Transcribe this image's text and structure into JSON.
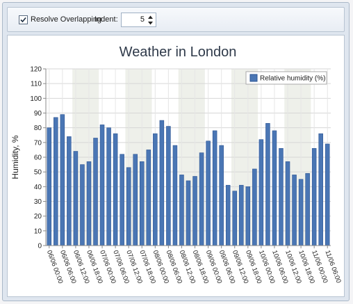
{
  "toolbar": {
    "resolve_overlapping_label": "Resolve Overlapping",
    "resolve_overlapping_checked": true,
    "indent_label": "Indent:",
    "indent_value": "5"
  },
  "colors": {
    "bar": "#4a76b4",
    "bar_dark": "#2d5593",
    "band": "#eef0ea",
    "grid": "#d6d6d6",
    "title": "#2f3a4a"
  },
  "chart_data": {
    "type": "bar",
    "title": "Weather in London",
    "ylabel": "Humidity, %",
    "xlabel": "",
    "ylim": [
      0,
      120
    ],
    "yticks": [
      0,
      10,
      20,
      30,
      40,
      50,
      60,
      70,
      80,
      90,
      100,
      110,
      120
    ],
    "legend": {
      "position": "top-right"
    },
    "categories": [
      "06/06 00:00",
      "06/06 03:00",
      "06/06 06:00",
      "06/06 09:00",
      "06/06 12:00",
      "06/06 15:00",
      "06/06 18:00",
      "06/06 21:00",
      "07/06 00:00",
      "07/06 03:00",
      "07/06 06:00",
      "07/06 09:00",
      "07/06 12:00",
      "07/06 15:00",
      "07/06 18:00",
      "07/06 21:00",
      "08/06 00:00",
      "08/06 03:00",
      "08/06 06:00",
      "08/06 09:00",
      "08/06 12:00",
      "08/06 15:00",
      "08/06 18:00",
      "08/06 21:00",
      "09/06 00:00",
      "09/06 03:00",
      "09/06 06:00",
      "09/06 09:00",
      "09/06 12:00",
      "09/06 15:00",
      "09/06 18:00",
      "09/06 21:00",
      "10/06 00:00",
      "10/06 03:00",
      "10/06 06:00",
      "10/06 09:00",
      "10/06 12:00",
      "10/06 15:00",
      "10/06 18:00",
      "10/06 21:00",
      "11/06 00:00",
      "11/06 03:00",
      "11/06 06:00"
    ],
    "tick_labels": [
      "06/06 00:00",
      "06/06 06:00",
      "06/06 12:00",
      "06/06 18:00",
      "07/06 00:00",
      "07/06 06:00",
      "07/06 12:00",
      "07/06 18:00",
      "08/06 00:00",
      "08/06 06:00",
      "08/06 12:00",
      "08/06 18:00",
      "09/06 00:00",
      "09/06 06:00",
      "09/06 12:00",
      "09/06 18:00",
      "10/06 00:00",
      "10/06 06:00",
      "10/06 12:00",
      "10/06 18:00",
      "11/06 00:00",
      "11/06 06:00"
    ],
    "series": [
      {
        "name": "Relative humidity (%)",
        "values": [
          80,
          87,
          89,
          74,
          64,
          55,
          57,
          73,
          82,
          80,
          76,
          62,
          53,
          62,
          57,
          65,
          76,
          85,
          81,
          68,
          48,
          44,
          47,
          63,
          71,
          78,
          68,
          41,
          37,
          41,
          40,
          52,
          72,
          83,
          78,
          66,
          57,
          48,
          45,
          49,
          66,
          76,
          69
        ]
      }
    ]
  }
}
